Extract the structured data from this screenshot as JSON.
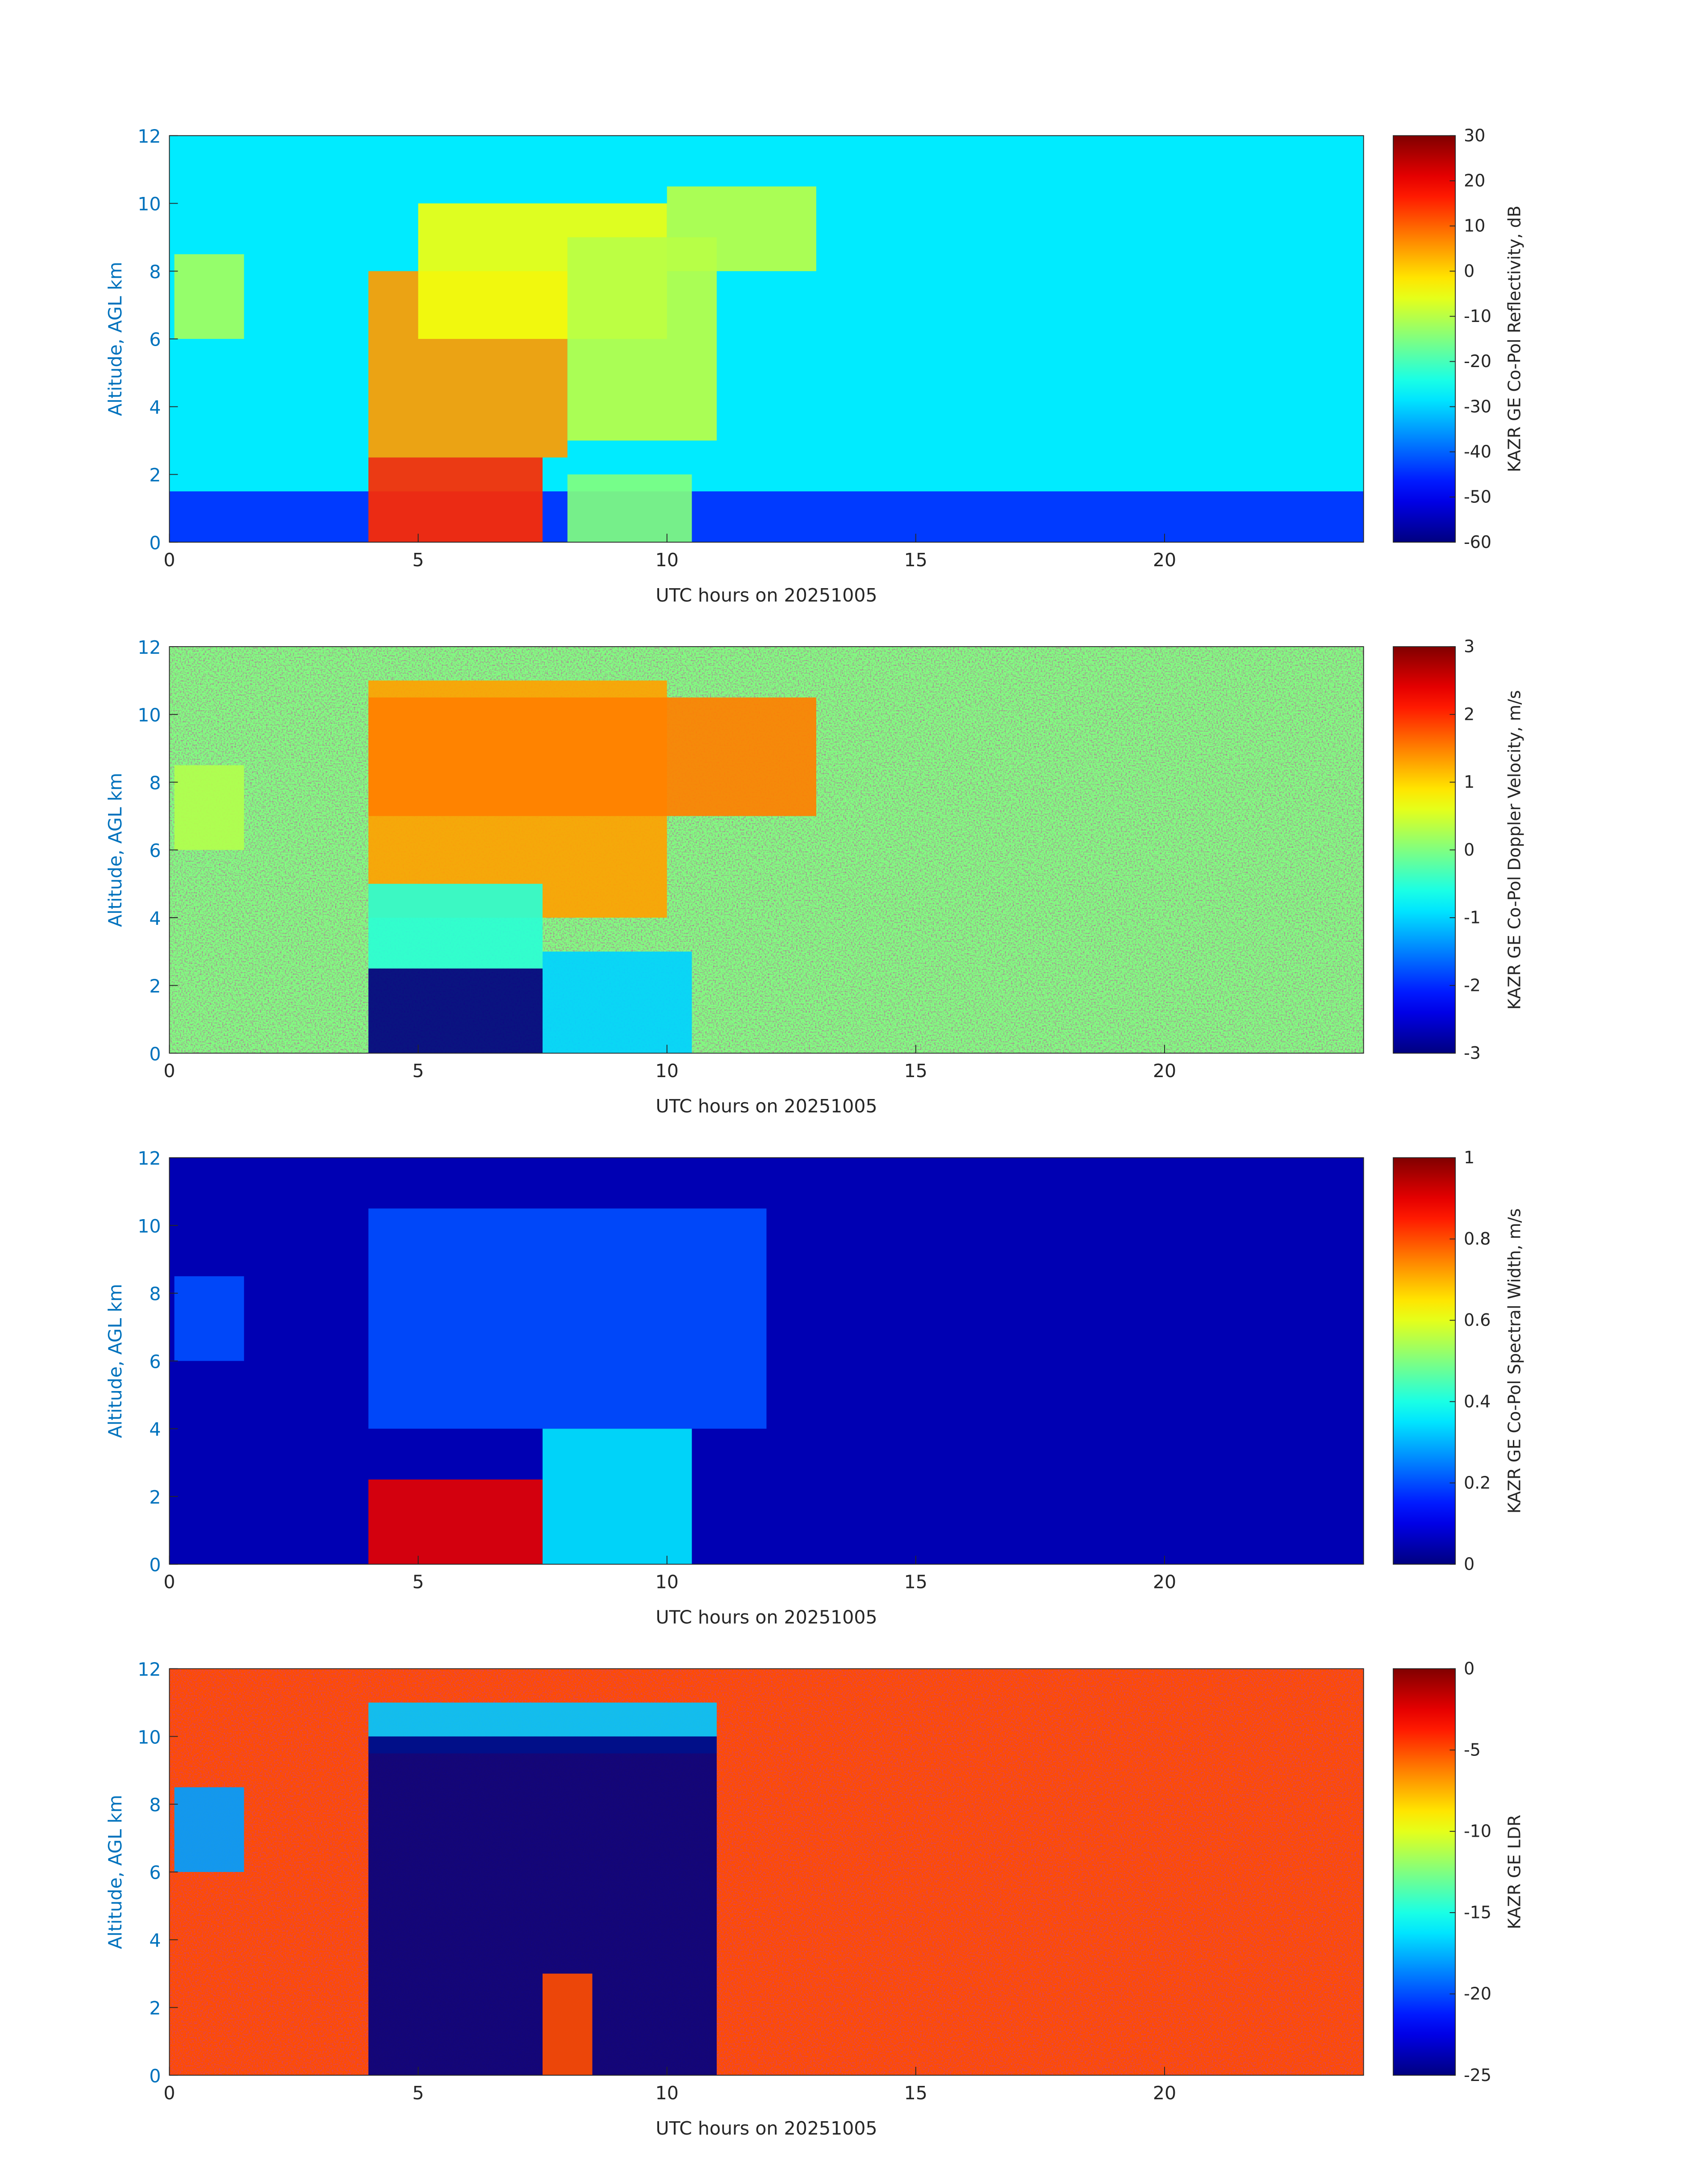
{
  "chart_data": [
    {
      "type": "heatmap",
      "xlabel": "UTC hours on 20251005",
      "ylabel": "Altitude, AGL km",
      "colorbar_label": "KAZR GE Co-Pol Reflectivity, dB",
      "xlim": [
        0,
        24
      ],
      "xticks": [
        0,
        5,
        10,
        15,
        20
      ],
      "ylim": [
        0,
        12
      ],
      "yticks": [
        0,
        2,
        4,
        6,
        8,
        10,
        12
      ],
      "clim": [
        -60,
        30
      ],
      "cticks": [
        -60,
        -50,
        -40,
        -30,
        -20,
        -10,
        0,
        10,
        20,
        30
      ],
      "colormap": "jet",
      "noise": false,
      "background": -28,
      "cells": [
        {
          "x": [
            0,
            24
          ],
          "y": [
            0,
            1.5
          ],
          "value": -45
        },
        {
          "x": [
            0.1,
            1.5
          ],
          "y": [
            6,
            8.5
          ],
          "value": -12
        },
        {
          "x": [
            4,
            8
          ],
          "y": [
            2.5,
            8
          ],
          "value": 5
        },
        {
          "x": [
            5,
            10
          ],
          "y": [
            6,
            10
          ],
          "value": -5
        },
        {
          "x": [
            8,
            11
          ],
          "y": [
            3,
            9
          ],
          "value": -10
        },
        {
          "x": [
            10,
            13
          ],
          "y": [
            8,
            10.5
          ],
          "value": -10
        },
        {
          "x": [
            4,
            7.5
          ],
          "y": [
            0,
            2.5
          ],
          "value": 15
        },
        {
          "x": [
            8,
            10.5
          ],
          "y": [
            0,
            2
          ],
          "value": -15
        }
      ]
    },
    {
      "type": "heatmap",
      "xlabel": "UTC hours on 20251005",
      "ylabel": "Altitude, AGL km",
      "colorbar_label": "KAZR GE Co-Pol Doppler Velocity, m/s",
      "xlim": [
        0,
        24
      ],
      "xticks": [
        0,
        5,
        10,
        15,
        20
      ],
      "ylim": [
        0,
        12
      ],
      "yticks": [
        0,
        2,
        4,
        6,
        8,
        10,
        12
      ],
      "clim": [
        -3,
        3
      ],
      "cticks": [
        -3,
        -2,
        -1,
        0,
        1,
        2,
        3
      ],
      "colormap": "jet",
      "noise": true,
      "background": 0,
      "cells": [
        {
          "x": [
            0.1,
            1.5
          ],
          "y": [
            6,
            8.5
          ],
          "value": 0.3
        },
        {
          "x": [
            4,
            10
          ],
          "y": [
            4,
            11
          ],
          "value": 1.3
        },
        {
          "x": [
            4,
            13
          ],
          "y": [
            7,
            10.5
          ],
          "value": 1.5
        },
        {
          "x": [
            4,
            7.5
          ],
          "y": [
            2.5,
            5
          ],
          "value": -0.5
        },
        {
          "x": [
            7.5,
            10.5
          ],
          "y": [
            0,
            3
          ],
          "value": -1
        },
        {
          "x": [
            4,
            7.5
          ],
          "y": [
            0,
            2.5
          ],
          "value": -3
        }
      ]
    },
    {
      "type": "heatmap",
      "xlabel": "UTC hours on 20251005",
      "ylabel": "Altitude, AGL km",
      "colorbar_label": "KAZR GE Co-Pol Spectral Width, m/s",
      "xlim": [
        0,
        24
      ],
      "xticks": [
        0,
        5,
        10,
        15,
        20
      ],
      "ylim": [
        0,
        12
      ],
      "yticks": [
        0,
        2,
        4,
        6,
        8,
        10,
        12
      ],
      "clim": [
        0,
        1
      ],
      "cticks": [
        0,
        0.2,
        0.4,
        0.6,
        0.8,
        1
      ],
      "colormap": "jet",
      "noise": false,
      "background": 0.05,
      "cells": [
        {
          "x": [
            0.1,
            1.5
          ],
          "y": [
            6,
            8.5
          ],
          "value": 0.2
        },
        {
          "x": [
            4,
            12
          ],
          "y": [
            4,
            10.5
          ],
          "value": 0.2
        },
        {
          "x": [
            7.5,
            10.5
          ],
          "y": [
            0,
            4
          ],
          "value": 0.35
        },
        {
          "x": [
            4,
            7.5
          ],
          "y": [
            0,
            2.5
          ],
          "value": 0.9
        }
      ]
    },
    {
      "type": "heatmap",
      "xlabel": "UTC hours on 20251005",
      "ylabel": "Altitude, AGL km",
      "colorbar_label": "KAZR GE LDR",
      "xlim": [
        0,
        24
      ],
      "xticks": [
        0,
        5,
        10,
        15,
        20
      ],
      "ylim": [
        0,
        12
      ],
      "yticks": [
        0,
        2,
        4,
        6,
        8,
        10,
        12
      ],
      "clim": [
        -25,
        0
      ],
      "cticks": [
        -25,
        -20,
        -15,
        -10,
        -5,
        0
      ],
      "colormap": "jet",
      "noise": true,
      "background": -5,
      "cells": [
        {
          "x": [
            0.1,
            1.5
          ],
          "y": [
            6,
            8.5
          ],
          "value": -18
        },
        {
          "x": [
            4,
            11
          ],
          "y": [
            9.5,
            11
          ],
          "value": -17
        },
        {
          "x": [
            4,
            11
          ],
          "y": [
            0,
            10
          ],
          "value": -25
        },
        {
          "x": [
            7.5,
            8.5
          ],
          "y": [
            0,
            3
          ],
          "value": -5
        }
      ]
    }
  ]
}
